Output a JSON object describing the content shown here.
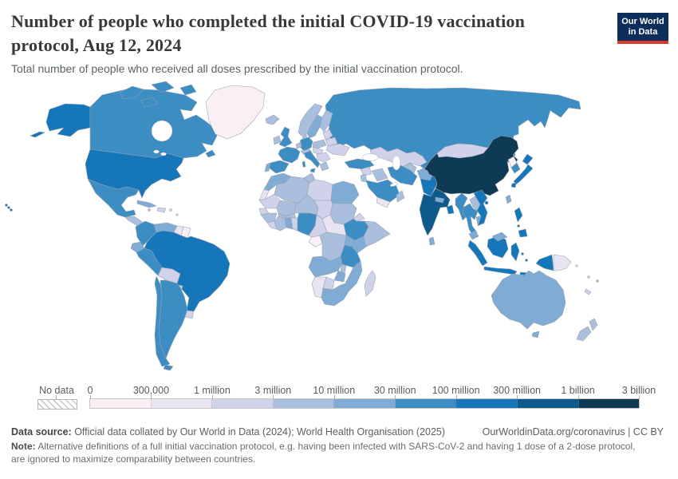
{
  "header": {
    "title_line1": "Number of people who completed the initial COVID-19 vaccination",
    "title_line2": "protocol, Aug 12, 2024",
    "subtitle": "Total number of people who received all doses prescribed by the initial vaccination protocol."
  },
  "logo": {
    "line1": "Our World",
    "line2": "in Data",
    "bg": "#0d2e5a",
    "accent": "#d43b2d"
  },
  "legend": {
    "no_data_label": "No data",
    "tick_labels": [
      "0",
      "300,000",
      "1 million",
      "3 million",
      "10 million",
      "30 million",
      "100 million",
      "300 million",
      "1 billion",
      "3 billion"
    ],
    "colors": [
      "#fbeff6",
      "#e8e4f1",
      "#cfd2e8",
      "#a9bfdd",
      "#7fabd4",
      "#3c8dc3",
      "#1576b9",
      "#0e5a8d",
      "#0e3a54"
    ]
  },
  "footer": {
    "source_label": "Data source:",
    "source_text": " Official data collated by Our World in Data (2024); World Health Organisation (2025)",
    "link_text": "OurWorldinData.org/coronavirus | CC BY",
    "note_label": "Note:",
    "note_text": " Alternative definitions of a full initial vaccination protocol, e.g. having been infected with SARS-CoV-2 and having 1 dose of a 2-dose protocol, are ignored to maximize comparability between countries."
  },
  "chart_data": {
    "type": "choropleth_map",
    "title": "Number of people who completed the initial COVID-19 vaccination protocol",
    "date": "Aug 12, 2024",
    "bin_labels": [
      "0–300,000",
      "300,000–1 million",
      "1–3 million",
      "3–10 million",
      "10–30 million",
      "30–100 million",
      "100–300 million",
      "300 million–1 billion",
      "1–3 billion"
    ],
    "legend_position": "bottom",
    "regions": {
      "united-states": 6,
      "canada": 5,
      "greenland": 0,
      "mexico": 5,
      "central-america": 3,
      "cuba": 4,
      "hispaniola": 2,
      "jamaica": 3,
      "puerto-rico": 2,
      "lesser-antilles": 2,
      "colombia": 5,
      "venezuela": 4,
      "guyana": 1,
      "suriname": 0,
      "ecuador": 4,
      "peru": 5,
      "brazil": 6,
      "bolivia": 2,
      "paraguay": 2,
      "uruguay": 2,
      "chile": 5,
      "argentina": 5,
      "iceland": 3,
      "united-kingdom": 5,
      "ireland": 3,
      "norway": 3,
      "sweden": 4,
      "finland": 3,
      "denmark": 3,
      "germany": 5,
      "benelux": 3,
      "france": 5,
      "spain": 5,
      "portugal": 4,
      "italy": 5,
      "switzerland-austria": 3,
      "poland": 3,
      "czech-hungary": 2,
      "baltics": 2,
      "belarus": 2,
      "ukraine": 2,
      "romania-balkans": 2,
      "greece": 3,
      "russia": 5,
      "kazakhstan": 2,
      "central-asia": 3,
      "caucasus": 3,
      "turkey": 5,
      "syria": 2,
      "israel-jordan": 3,
      "iraq": 3,
      "saudi-arabia": 5,
      "yemen": 1,
      "oman": 3,
      "iran": 5,
      "afghanistan": 4,
      "pakistan": 6,
      "india": 7,
      "nepal": 4,
      "bangladesh": 6,
      "sri-lanka": 4,
      "china": 8,
      "mongolia": 2,
      "north-korea": 0,
      "south-korea": 5,
      "japan": 6,
      "taiwan": 4,
      "hong-kong": 6,
      "myanmar": 5,
      "laos": 3,
      "thailand": 5,
      "vietnam": 6,
      "cambodia": 4,
      "malaysia": 4,
      "indonesia": 6,
      "philippines": 6,
      "papua-new-guinea": 1,
      "australia": 4,
      "new-zealand": 3,
      "fiji": 3,
      "new-caledonia": 2,
      "solomon-islands": 1,
      "vanuatu": 2,
      "morocco": 4,
      "western-sahara": 1,
      "algeria": 3,
      "tunisia": 3,
      "libya": 2,
      "egypt": 4,
      "mauritania": 2,
      "senegal": 2,
      "mali": 3,
      "guinea": 3,
      "sierra-leone-liberia": 2,
      "ivory-coast": 3,
      "burkina-faso": 3,
      "ghana": 4,
      "togo-benin": 2,
      "nigeria": 5,
      "niger": 3,
      "chad": 2,
      "sudan": 3,
      "eritrea": 2,
      "ethiopia": 5,
      "somalia": 3,
      "central-african-republic": 1,
      "cameroon": 2,
      "gabon-congo": 0,
      "dr-congo": 3,
      "uganda": 4,
      "kenya": 4,
      "tanzania": 5,
      "angola": 4,
      "zambia": 4,
      "malawi": 3,
      "mozambique": 4,
      "zimbabwe": 4,
      "botswana": 2,
      "namibia": 1,
      "south-africa": 4,
      "madagascar": 2
    }
  }
}
